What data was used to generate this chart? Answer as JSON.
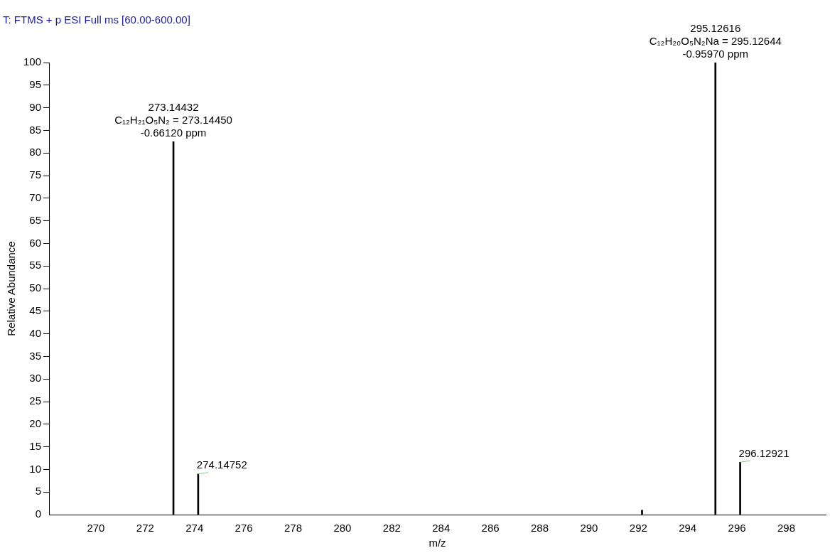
{
  "chart_data": {
    "type": "bar",
    "title": "T: FTMS + p ESI Full ms [60.00-600.00]",
    "xlabel": "m/z",
    "ylabel": "Relative Abundance",
    "x": [
      273.14432,
      274.14752,
      292.15,
      295.12616,
      296.12921
    ],
    "series": [
      {
        "color": "#000000",
        "values": [
          82.5,
          9,
          1,
          100,
          11.6
        ]
      }
    ],
    "xlim": [
      268.1,
      299.6
    ],
    "xticks": [
      270,
      272,
      274,
      276,
      278,
      280,
      282,
      284,
      286,
      288,
      290,
      292,
      294,
      296,
      298
    ],
    "ylim": [
      0,
      100
    ],
    "yticks": [
      0,
      5,
      10,
      15,
      20,
      25,
      30,
      35,
      40,
      45,
      50,
      55,
      60,
      65,
      70,
      75,
      80,
      85,
      90,
      95,
      100
    ],
    "grid": false,
    "legend": false,
    "annotations": [
      {
        "text": "273.14432\nC₁₂H₂₁O₅N₂ = 273.14450\n-0.66120 ppm",
        "x": 273.14432,
        "y": 82.5
      },
      {
        "text": "274.14752",
        "x": 274.14752,
        "y": 9
      },
      {
        "text": "295.12616\nC₁₂H₂₀O₅N₂Na = 295.12644\n-0.95970 ppm",
        "x": 295.12616,
        "y": 100
      },
      {
        "text": "296.12921",
        "x": 296.12921,
        "y": 11.6
      }
    ]
  }
}
